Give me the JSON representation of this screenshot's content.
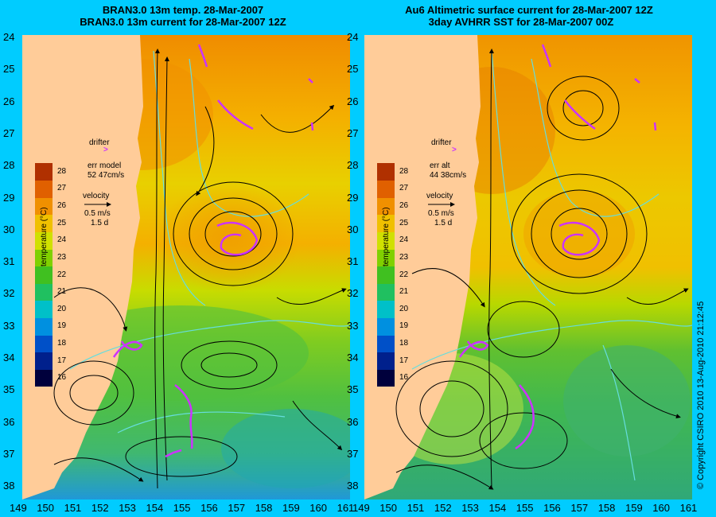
{
  "left_panel": {
    "title_line1": "BRAN3.0 13m temp. 28-Mar-2007",
    "title_line2": "BRAN3.0 13m current for 28-Mar-2007 12Z",
    "drifter_label": "drifter",
    "err_label": "err model",
    "err_value": "52 47cm/s",
    "velocity_label": "velocity",
    "velocity_scale": "0.5 m/s",
    "velocity_time": "1.5 d"
  },
  "right_panel": {
    "title_line1": "Au6 Altimetric surface current for 28-Mar-2007 12Z",
    "title_line2": "3day AVHRR SST for 28-Mar-2007 00Z",
    "drifter_label": "drifter",
    "err_label": "err alt",
    "err_value": "44 38cm/s",
    "velocity_label": "velocity",
    "velocity_scale": "0.5 m/s",
    "velocity_time": "1.5 d"
  },
  "colorbar": {
    "label": "temperature (°C)",
    "ticks": [
      "16",
      "17",
      "18",
      "19",
      "20",
      "21",
      "22",
      "23",
      "24",
      "25",
      "26",
      "27",
      "28"
    ],
    "colors": [
      "#00003c",
      "#00208c",
      "#0050c8",
      "#0090e0",
      "#00c0c8",
      "#20c060",
      "#40c020",
      "#80d000",
      "#d0e000",
      "#f0c000",
      "#f09000",
      "#e06000",
      "#b03000"
    ]
  },
  "axes": {
    "lon_ticks": [
      "149",
      "150",
      "151",
      "152",
      "153",
      "154",
      "155",
      "156",
      "157",
      "158",
      "159",
      "160",
      "161"
    ],
    "lat_ticks": [
      "24",
      "25",
      "26",
      "27",
      "28",
      "29",
      "30",
      "31",
      "32",
      "33",
      "34",
      "35",
      "36",
      "37",
      "38"
    ]
  },
  "copyright": "© Copyright CSIRO 2010   13-Aug-2010 21:12:45",
  "colors": {
    "background": "#00ccff",
    "land": "#ffcc99",
    "drifter": "#cc33ff",
    "contour": "#66dddd"
  }
}
